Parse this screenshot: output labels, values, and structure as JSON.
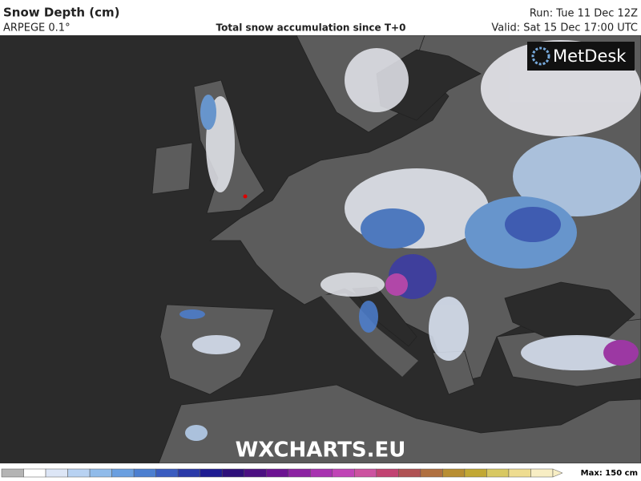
{
  "header": {
    "title": "Snow Depth (cm)",
    "model": "ARPEGE 0.1°",
    "subtitle": "Total snow accumulation since T+0",
    "run": "Run: Tue 11 Dec 12Z",
    "valid": "Valid: Sat 15 Dec 17:00 UTC"
  },
  "map": {
    "logo": "MetDesk",
    "watermark": "WXCHARTS.EU"
  },
  "colorbar": {
    "colors": [
      "#b4b4b4",
      "#ffffff",
      "#dde6f6",
      "#b8d2f2",
      "#90bbea",
      "#6a9fe0",
      "#4c7fd0",
      "#3a5cc0",
      "#2a3aa8",
      "#1e1c92",
      "#2e107a",
      "#4c1082",
      "#6c1292",
      "#8c22a2",
      "#a832b0",
      "#c044b6",
      "#cc52a0",
      "#c24272",
      "#b05254",
      "#b07040",
      "#b88e32",
      "#c2a834",
      "#d8c862",
      "#eedc90",
      "#f8eec4"
    ],
    "max_label": "Max: 150 cm"
  }
}
